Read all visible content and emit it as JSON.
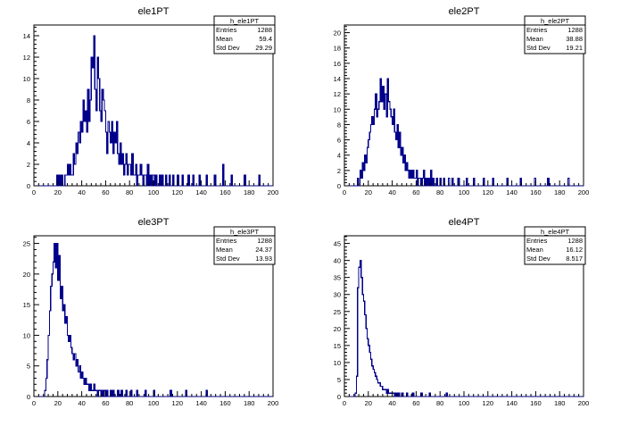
{
  "chart_data": [
    {
      "type": "bar",
      "histogram": true,
      "title": "ele1PT",
      "xlabel": "",
      "ylabel": "",
      "xlim": [
        0,
        200
      ],
      "ylim": [
        0,
        15
      ],
      "bin_width": 1,
      "color": "#00008b",
      "xticks": [
        0,
        20,
        40,
        60,
        80,
        100,
        120,
        140,
        160,
        180,
        200
      ],
      "yticks": [
        0,
        2,
        4,
        6,
        8,
        10,
        12,
        14
      ],
      "stats": {
        "name": "h_ele1PT",
        "rows": [
          {
            "label": "Entries",
            "value": "1288"
          },
          {
            "label": "Mean",
            "value": "59.4"
          },
          {
            "label": "Std Dev",
            "value": "29.29"
          }
        ]
      },
      "values": [
        0,
        0,
        0,
        0,
        0,
        0,
        0,
        0,
        0,
        0,
        0,
        0,
        0,
        0,
        0,
        0,
        0,
        0,
        0,
        1,
        0,
        1,
        0,
        1,
        0,
        0,
        1,
        1,
        2,
        1,
        2,
        1,
        1,
        3,
        2,
        4,
        3,
        5,
        4,
        6,
        5,
        8,
        6,
        7,
        5,
        9,
        6,
        8,
        12,
        11,
        14,
        9,
        7,
        12,
        10,
        7,
        6,
        9,
        8,
        7,
        5,
        3,
        6,
        5,
        4,
        6,
        3,
        5,
        4,
        6,
        3,
        2,
        4,
        2,
        3,
        1,
        2,
        3,
        1,
        2,
        2,
        1,
        3,
        1,
        1,
        2,
        0,
        1,
        1,
        2,
        1,
        0,
        1,
        1,
        0,
        2,
        0,
        1,
        0,
        1,
        1,
        0,
        1,
        0,
        0,
        1,
        0,
        1,
        0,
        0,
        1,
        0,
        0,
        1,
        0,
        0,
        1,
        0,
        0,
        0,
        1,
        0,
        0,
        0,
        1,
        0,
        0,
        0,
        0,
        1,
        0,
        0,
        0,
        1,
        0,
        0,
        0,
        0,
        1,
        0,
        0,
        0,
        0,
        0,
        1,
        0,
        0,
        0,
        0,
        0,
        0,
        1,
        0,
        0,
        0,
        0,
        0,
        0,
        2,
        0,
        0,
        0,
        0,
        0,
        0,
        1,
        0,
        0,
        0,
        0,
        0,
        0,
        0,
        0,
        0,
        0,
        1,
        0,
        0,
        0,
        0,
        0,
        0,
        0,
        0,
        0,
        0,
        0,
        1,
        0,
        0,
        0,
        0,
        0,
        0,
        0,
        0,
        0,
        0,
        0
      ]
    },
    {
      "type": "bar",
      "histogram": true,
      "title": "ele2PT",
      "xlabel": "",
      "ylabel": "",
      "xlim": [
        0,
        200
      ],
      "ylim": [
        0,
        21
      ],
      "bin_width": 1,
      "color": "#00008b",
      "xticks": [
        0,
        20,
        40,
        60,
        80,
        100,
        120,
        140,
        160,
        180,
        200
      ],
      "yticks": [
        0,
        2,
        4,
        6,
        8,
        10,
        12,
        14,
        16,
        18,
        20
      ],
      "stats": {
        "name": "h_ele2PT",
        "rows": [
          {
            "label": "Entries",
            "value": "1288"
          },
          {
            "label": "Mean",
            "value": "38.88"
          },
          {
            "label": "Std Dev",
            "value": "19.21"
          }
        ]
      },
      "values": [
        0,
        0,
        0,
        0,
        0,
        0,
        0,
        0,
        0,
        0,
        0,
        1,
        0,
        2,
        1,
        3,
        2,
        4,
        3,
        5,
        6,
        7,
        8,
        9,
        8,
        10,
        12,
        9,
        10,
        11,
        14,
        11,
        13,
        10,
        12,
        9,
        14,
        11,
        10,
        9,
        8,
        10,
        7,
        6,
        8,
        5,
        7,
        4,
        5,
        3,
        4,
        2,
        3,
        2,
        1,
        2,
        1,
        2,
        1,
        1,
        2,
        0,
        1,
        1,
        0,
        1,
        2,
        0,
        1,
        0,
        1,
        0,
        2,
        0,
        1,
        0,
        0,
        1,
        0,
        0,
        1,
        0,
        0,
        1,
        0,
        0,
        0,
        1,
        0,
        0,
        1,
        0,
        0,
        0,
        0,
        1,
        0,
        0,
        0,
        0,
        0,
        0,
        1,
        0,
        0,
        0,
        0,
        0,
        1,
        0,
        0,
        0,
        0,
        0,
        0,
        0,
        1,
        0,
        0,
        0,
        0,
        0,
        0,
        0,
        1,
        0,
        0,
        0,
        0,
        0,
        0,
        0,
        0,
        0,
        0,
        0,
        1,
        0,
        0,
        0,
        0,
        0,
        0,
        0,
        0,
        0,
        0,
        1,
        0,
        0,
        0,
        0,
        0,
        0,
        0,
        0,
        0,
        0,
        0,
        1,
        0,
        0,
        0,
        0,
        0,
        0,
        0,
        0,
        0,
        0,
        1,
        0,
        0,
        0,
        0,
        0,
        0,
        0,
        0,
        0,
        0,
        0,
        0,
        0,
        0,
        0,
        0,
        1,
        0,
        0,
        0,
        0,
        0,
        0,
        0,
        0,
        0,
        0,
        0,
        0
      ]
    },
    {
      "type": "bar",
      "histogram": true,
      "title": "ele3PT",
      "xlabel": "",
      "ylabel": "",
      "xlim": [
        0,
        200
      ],
      "ylim": [
        0,
        26.25
      ],
      "bin_width": 1,
      "color": "#00008b",
      "xticks": [
        0,
        20,
        40,
        60,
        80,
        100,
        120,
        140,
        160,
        180,
        200
      ],
      "yticks": [
        0,
        5,
        10,
        15,
        20,
        25
      ],
      "stats": {
        "name": "h_ele3PT",
        "rows": [
          {
            "label": "Entries",
            "value": "1288"
          },
          {
            "label": "Mean",
            "value": "24.37"
          },
          {
            "label": "Std Dev",
            "value": "13.93"
          }
        ]
      },
      "values": [
        0,
        0,
        0,
        0,
        0,
        0,
        0,
        0,
        0,
        1,
        3,
        6,
        10,
        14,
        18,
        20,
        22,
        25,
        21,
        25,
        19,
        23,
        16,
        18,
        14,
        15,
        12,
        13,
        10,
        9,
        10,
        8,
        7,
        6,
        7,
        5,
        6,
        4,
        5,
        3,
        4,
        3,
        2,
        3,
        2,
        2,
        1,
        2,
        1,
        1,
        2,
        1,
        1,
        0,
        1,
        1,
        0,
        1,
        0,
        1,
        0,
        1,
        0,
        0,
        1,
        0,
        1,
        0,
        0,
        0,
        1,
        0,
        0,
        1,
        0,
        0,
        0,
        1,
        0,
        0,
        0,
        1,
        0,
        0,
        0,
        0,
        1,
        0,
        0,
        0,
        0,
        0,
        0,
        1,
        0,
        0,
        0,
        0,
        0,
        0,
        1,
        0,
        0,
        0,
        0,
        0,
        0,
        0,
        0,
        0,
        0,
        0,
        0,
        0,
        1,
        0,
        0,
        0,
        0,
        0,
        0,
        0,
        0,
        0,
        0,
        0,
        0,
        1,
        0,
        0,
        0,
        0,
        0,
        0,
        0,
        0,
        0,
        0,
        0,
        0,
        0,
        0,
        0,
        0,
        1,
        0,
        0,
        0,
        0,
        0,
        0,
        0,
        0,
        0,
        0,
        0,
        0,
        0,
        0,
        0,
        0,
        0,
        0,
        0,
        0,
        0,
        0,
        0,
        0,
        0,
        0,
        0,
        0,
        0,
        0,
        0,
        0,
        0,
        0,
        0,
        0,
        0,
        0,
        0,
        0,
        0,
        0,
        0,
        0,
        0,
        0,
        0,
        0,
        0,
        0,
        0,
        0,
        0,
        0,
        0
      ]
    },
    {
      "type": "bar",
      "histogram": true,
      "title": "ele4PT",
      "xlabel": "",
      "ylabel": "",
      "xlim": [
        0,
        200
      ],
      "ylim": [
        0,
        47.25
      ],
      "bin_width": 1,
      "color": "#00008b",
      "xticks": [
        0,
        20,
        40,
        60,
        80,
        100,
        120,
        140,
        160,
        180,
        200
      ],
      "yticks": [
        0,
        5,
        10,
        15,
        20,
        25,
        30,
        35,
        40,
        45
      ],
      "stats": {
        "name": "h_ele4PT",
        "rows": [
          {
            "label": "Entries",
            "value": "1288"
          },
          {
            "label": "Mean",
            "value": "16.12"
          },
          {
            "label": "Std Dev",
            "value": "8.517"
          }
        ]
      },
      "values": [
        0,
        0,
        0,
        0,
        0,
        0,
        0,
        0,
        0,
        1,
        6,
        32,
        38,
        40,
        35,
        30,
        28,
        24,
        20,
        17,
        15,
        13,
        11,
        9,
        8,
        7,
        6,
        5,
        4,
        4,
        3,
        3,
        2,
        2,
        2,
        1,
        2,
        1,
        1,
        1,
        1,
        1,
        0,
        1,
        0,
        1,
        0,
        0,
        1,
        0,
        0,
        0,
        1,
        0,
        0,
        0,
        0,
        1,
        0,
        0,
        0,
        0,
        0,
        0,
        1,
        0,
        0,
        0,
        0,
        0,
        0,
        1,
        0,
        0,
        0,
        0,
        0,
        0,
        0,
        0,
        0,
        0,
        0,
        0,
        0,
        1,
        0,
        0,
        0,
        0,
        0,
        0,
        0,
        0,
        0,
        0,
        0,
        0,
        0,
        0,
        0,
        0,
        0,
        0,
        0,
        0,
        0,
        0,
        0,
        0,
        0,
        0,
        0,
        0,
        0,
        0,
        0,
        0,
        0,
        0,
        0,
        0,
        0,
        0,
        0,
        0,
        0,
        0,
        0,
        0,
        0,
        0,
        0,
        0,
        0,
        0,
        0,
        0,
        0,
        0,
        0,
        0,
        0,
        0,
        0,
        0,
        0,
        0,
        0,
        0,
        0,
        0,
        0,
        0,
        0,
        0,
        0,
        0,
        0,
        0,
        0,
        0,
        0,
        0,
        0,
        0,
        0,
        0,
        0,
        0,
        0,
        0,
        0,
        0,
        0,
        0,
        0,
        0,
        0,
        0,
        0,
        0,
        0,
        0,
        0,
        0,
        0,
        0,
        0,
        0,
        0,
        0,
        0,
        0,
        0,
        0,
        0,
        0,
        0,
        0
      ]
    }
  ]
}
